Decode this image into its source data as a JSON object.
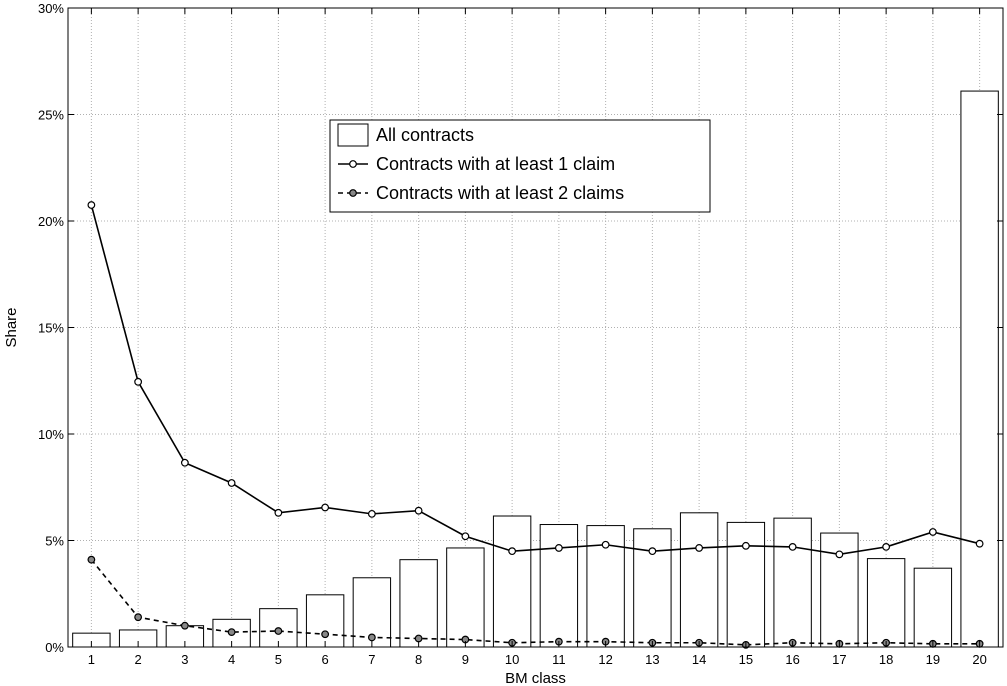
{
  "chart_data": {
    "type": "bar",
    "xlabel": "BM class",
    "ylabel": "Share",
    "ylim": [
      0,
      30
    ],
    "y_ticks": [
      "0%",
      "5%",
      "10%",
      "15%",
      "20%",
      "25%",
      "30%"
    ],
    "categories": [
      "1",
      "2",
      "3",
      "4",
      "5",
      "6",
      "7",
      "8",
      "9",
      "10",
      "11",
      "12",
      "13",
      "14",
      "15",
      "16",
      "17",
      "18",
      "19",
      "20"
    ],
    "grid": true,
    "legend_position": "top-center",
    "series": [
      {
        "name": "All contracts",
        "kind": "bar",
        "values": [
          0.65,
          0.8,
          1.0,
          1.3,
          1.8,
          2.45,
          3.25,
          4.1,
          4.65,
          6.15,
          5.75,
          5.7,
          5.55,
          6.3,
          5.85,
          6.05,
          5.35,
          4.15,
          3.7,
          26.1
        ]
      },
      {
        "name": "Contracts with at least 1 claim",
        "kind": "line",
        "style": "solid",
        "values": [
          20.75,
          12.45,
          8.65,
          7.7,
          6.3,
          6.55,
          6.25,
          6.4,
          5.2,
          4.5,
          4.65,
          4.8,
          4.5,
          4.65,
          4.75,
          4.7,
          4.35,
          4.7,
          5.4,
          4.85
        ]
      },
      {
        "name": "Contracts with at least 2 claims",
        "kind": "line",
        "style": "dashed",
        "values": [
          4.1,
          1.4,
          1.0,
          0.7,
          0.75,
          0.6,
          0.45,
          0.4,
          0.35,
          0.2,
          0.25,
          0.25,
          0.2,
          0.2,
          0.1,
          0.2,
          0.15,
          0.2,
          0.15,
          0.15
        ]
      }
    ]
  }
}
